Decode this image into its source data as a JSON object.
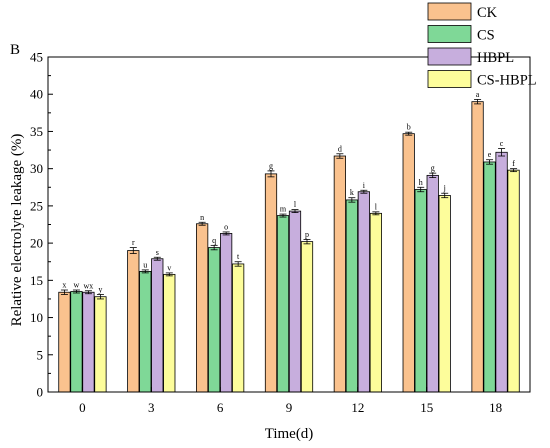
{
  "panel_label": "B",
  "chart_data": {
    "type": "bar",
    "xlabel": "Time(d)",
    "ylabel": "Relative electrolyte leakage  (%)",
    "ylim": [
      0,
      45
    ],
    "yticks": [
      0,
      5,
      10,
      15,
      20,
      25,
      30,
      35,
      40,
      45
    ],
    "categories": [
      "0",
      "3",
      "6",
      "9",
      "12",
      "15",
      "18"
    ],
    "legend_position": "top-right",
    "series": [
      {
        "name": "CK",
        "color": "#FAC28E",
        "values": [
          13.4,
          19.0,
          22.6,
          29.3,
          31.7,
          34.7,
          39.0
        ],
        "errors": [
          0.3,
          0.4,
          0.2,
          0.4,
          0.3,
          0.2,
          0.3
        ],
        "letters": [
          "x",
          "r",
          "n",
          "g",
          "d",
          "b",
          "a"
        ]
      },
      {
        "name": "CS",
        "color": "#7FD897",
        "values": [
          13.5,
          16.2,
          19.4,
          23.7,
          25.8,
          27.2,
          30.9
        ],
        "errors": [
          0.2,
          0.2,
          0.3,
          0.2,
          0.3,
          0.3,
          0.3
        ],
        "letters": [
          "w",
          "u",
          "q",
          "m",
          "k",
          "h",
          "e"
        ]
      },
      {
        "name": "HBPL",
        "color": "#C7AEDD",
        "values": [
          13.4,
          17.9,
          21.3,
          24.3,
          26.9,
          29.1,
          32.2
        ],
        "errors": [
          0.2,
          0.2,
          0.2,
          0.2,
          0.2,
          0.3,
          0.5
        ],
        "letters": [
          "wx",
          "s",
          "o",
          "l",
          "i",
          "g",
          "c"
        ]
      },
      {
        "name": "CS-HBPL",
        "color": "#FDFD9B",
        "values": [
          12.8,
          15.8,
          17.2,
          20.2,
          24.0,
          26.4,
          29.8
        ],
        "errors": [
          0.3,
          0.2,
          0.3,
          0.3,
          0.2,
          0.3,
          0.2
        ],
        "letters": [
          "y",
          "v",
          "t",
          "p",
          "l",
          "j",
          "f"
        ]
      }
    ]
  }
}
